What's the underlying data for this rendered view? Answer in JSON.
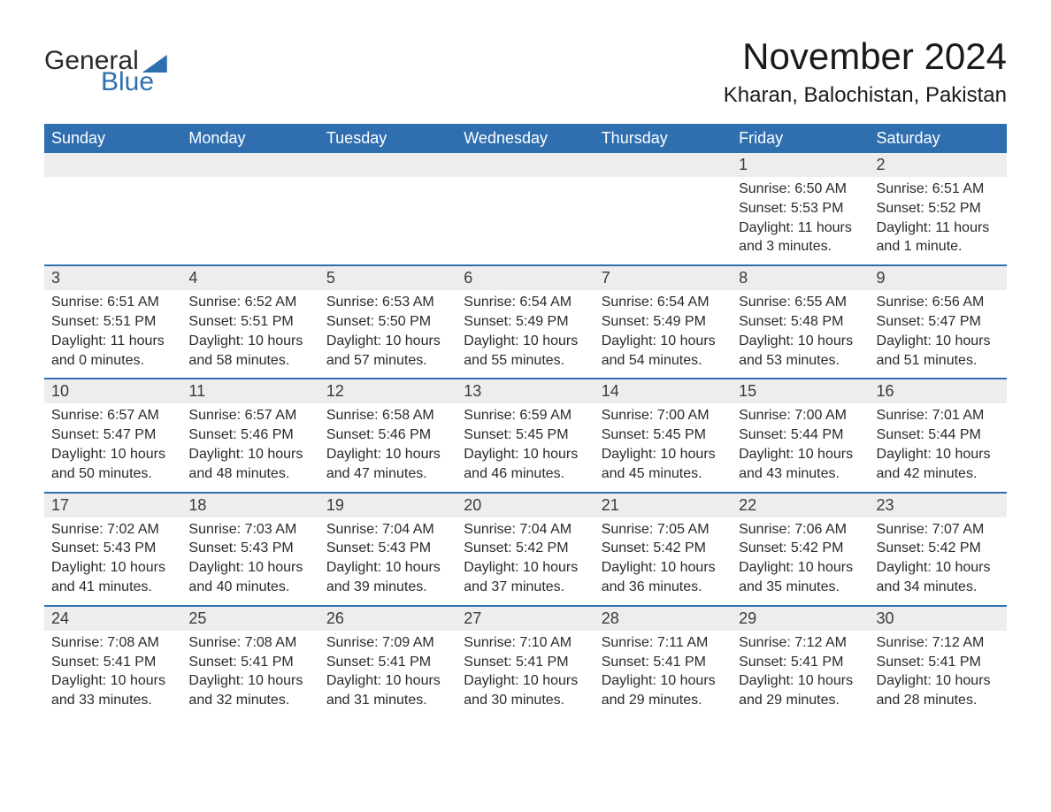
{
  "logo": {
    "word1": "General",
    "word2": "Blue"
  },
  "header": {
    "month_title": "November 2024",
    "location": "Kharan, Balochistan, Pakistan"
  },
  "colors": {
    "brand_blue": "#2f6fb0",
    "header_text": "#ffffff",
    "daynum_bg": "#ededed",
    "body_text": "#2a2a2a",
    "page_bg": "#ffffff"
  },
  "typography": {
    "month_title_pt": 42,
    "location_pt": 24,
    "dayhead_pt": 18,
    "daynum_pt": 18,
    "body_pt": 16,
    "font_family": "Arial"
  },
  "calendar": {
    "day_headers": [
      "Sunday",
      "Monday",
      "Tuesday",
      "Wednesday",
      "Thursday",
      "Friday",
      "Saturday"
    ],
    "weeks": [
      [
        null,
        null,
        null,
        null,
        null,
        {
          "n": "1",
          "sunrise": "Sunrise: 6:50 AM",
          "sunset": "Sunset: 5:53 PM",
          "daylight1": "Daylight: 11 hours",
          "daylight2": "and 3 minutes."
        },
        {
          "n": "2",
          "sunrise": "Sunrise: 6:51 AM",
          "sunset": "Sunset: 5:52 PM",
          "daylight1": "Daylight: 11 hours",
          "daylight2": "and 1 minute."
        }
      ],
      [
        {
          "n": "3",
          "sunrise": "Sunrise: 6:51 AM",
          "sunset": "Sunset: 5:51 PM",
          "daylight1": "Daylight: 11 hours",
          "daylight2": "and 0 minutes."
        },
        {
          "n": "4",
          "sunrise": "Sunrise: 6:52 AM",
          "sunset": "Sunset: 5:51 PM",
          "daylight1": "Daylight: 10 hours",
          "daylight2": "and 58 minutes."
        },
        {
          "n": "5",
          "sunrise": "Sunrise: 6:53 AM",
          "sunset": "Sunset: 5:50 PM",
          "daylight1": "Daylight: 10 hours",
          "daylight2": "and 57 minutes."
        },
        {
          "n": "6",
          "sunrise": "Sunrise: 6:54 AM",
          "sunset": "Sunset: 5:49 PM",
          "daylight1": "Daylight: 10 hours",
          "daylight2": "and 55 minutes."
        },
        {
          "n": "7",
          "sunrise": "Sunrise: 6:54 AM",
          "sunset": "Sunset: 5:49 PM",
          "daylight1": "Daylight: 10 hours",
          "daylight2": "and 54 minutes."
        },
        {
          "n": "8",
          "sunrise": "Sunrise: 6:55 AM",
          "sunset": "Sunset: 5:48 PM",
          "daylight1": "Daylight: 10 hours",
          "daylight2": "and 53 minutes."
        },
        {
          "n": "9",
          "sunrise": "Sunrise: 6:56 AM",
          "sunset": "Sunset: 5:47 PM",
          "daylight1": "Daylight: 10 hours",
          "daylight2": "and 51 minutes."
        }
      ],
      [
        {
          "n": "10",
          "sunrise": "Sunrise: 6:57 AM",
          "sunset": "Sunset: 5:47 PM",
          "daylight1": "Daylight: 10 hours",
          "daylight2": "and 50 minutes."
        },
        {
          "n": "11",
          "sunrise": "Sunrise: 6:57 AM",
          "sunset": "Sunset: 5:46 PM",
          "daylight1": "Daylight: 10 hours",
          "daylight2": "and 48 minutes."
        },
        {
          "n": "12",
          "sunrise": "Sunrise: 6:58 AM",
          "sunset": "Sunset: 5:46 PM",
          "daylight1": "Daylight: 10 hours",
          "daylight2": "and 47 minutes."
        },
        {
          "n": "13",
          "sunrise": "Sunrise: 6:59 AM",
          "sunset": "Sunset: 5:45 PM",
          "daylight1": "Daylight: 10 hours",
          "daylight2": "and 46 minutes."
        },
        {
          "n": "14",
          "sunrise": "Sunrise: 7:00 AM",
          "sunset": "Sunset: 5:45 PM",
          "daylight1": "Daylight: 10 hours",
          "daylight2": "and 45 minutes."
        },
        {
          "n": "15",
          "sunrise": "Sunrise: 7:00 AM",
          "sunset": "Sunset: 5:44 PM",
          "daylight1": "Daylight: 10 hours",
          "daylight2": "and 43 minutes."
        },
        {
          "n": "16",
          "sunrise": "Sunrise: 7:01 AM",
          "sunset": "Sunset: 5:44 PM",
          "daylight1": "Daylight: 10 hours",
          "daylight2": "and 42 minutes."
        }
      ],
      [
        {
          "n": "17",
          "sunrise": "Sunrise: 7:02 AM",
          "sunset": "Sunset: 5:43 PM",
          "daylight1": "Daylight: 10 hours",
          "daylight2": "and 41 minutes."
        },
        {
          "n": "18",
          "sunrise": "Sunrise: 7:03 AM",
          "sunset": "Sunset: 5:43 PM",
          "daylight1": "Daylight: 10 hours",
          "daylight2": "and 40 minutes."
        },
        {
          "n": "19",
          "sunrise": "Sunrise: 7:04 AM",
          "sunset": "Sunset: 5:43 PM",
          "daylight1": "Daylight: 10 hours",
          "daylight2": "and 39 minutes."
        },
        {
          "n": "20",
          "sunrise": "Sunrise: 7:04 AM",
          "sunset": "Sunset: 5:42 PM",
          "daylight1": "Daylight: 10 hours",
          "daylight2": "and 37 minutes."
        },
        {
          "n": "21",
          "sunrise": "Sunrise: 7:05 AM",
          "sunset": "Sunset: 5:42 PM",
          "daylight1": "Daylight: 10 hours",
          "daylight2": "and 36 minutes."
        },
        {
          "n": "22",
          "sunrise": "Sunrise: 7:06 AM",
          "sunset": "Sunset: 5:42 PM",
          "daylight1": "Daylight: 10 hours",
          "daylight2": "and 35 minutes."
        },
        {
          "n": "23",
          "sunrise": "Sunrise: 7:07 AM",
          "sunset": "Sunset: 5:42 PM",
          "daylight1": "Daylight: 10 hours",
          "daylight2": "and 34 minutes."
        }
      ],
      [
        {
          "n": "24",
          "sunrise": "Sunrise: 7:08 AM",
          "sunset": "Sunset: 5:41 PM",
          "daylight1": "Daylight: 10 hours",
          "daylight2": "and 33 minutes."
        },
        {
          "n": "25",
          "sunrise": "Sunrise: 7:08 AM",
          "sunset": "Sunset: 5:41 PM",
          "daylight1": "Daylight: 10 hours",
          "daylight2": "and 32 minutes."
        },
        {
          "n": "26",
          "sunrise": "Sunrise: 7:09 AM",
          "sunset": "Sunset: 5:41 PM",
          "daylight1": "Daylight: 10 hours",
          "daylight2": "and 31 minutes."
        },
        {
          "n": "27",
          "sunrise": "Sunrise: 7:10 AM",
          "sunset": "Sunset: 5:41 PM",
          "daylight1": "Daylight: 10 hours",
          "daylight2": "and 30 minutes."
        },
        {
          "n": "28",
          "sunrise": "Sunrise: 7:11 AM",
          "sunset": "Sunset: 5:41 PM",
          "daylight1": "Daylight: 10 hours",
          "daylight2": "and 29 minutes."
        },
        {
          "n": "29",
          "sunrise": "Sunrise: 7:12 AM",
          "sunset": "Sunset: 5:41 PM",
          "daylight1": "Daylight: 10 hours",
          "daylight2": "and 29 minutes."
        },
        {
          "n": "30",
          "sunrise": "Sunrise: 7:12 AM",
          "sunset": "Sunset: 5:41 PM",
          "daylight1": "Daylight: 10 hours",
          "daylight2": "and 28 minutes."
        }
      ]
    ]
  }
}
